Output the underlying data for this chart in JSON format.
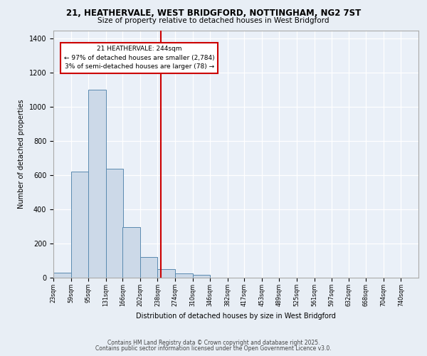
{
  "title_line1": "21, HEATHERVALE, WEST BRIDGFORD, NOTTINGHAM, NG2 7ST",
  "title_line2": "Size of property relative to detached houses in West Bridgford",
  "xlabel": "Distribution of detached houses by size in West Bridgford",
  "ylabel": "Number of detached properties",
  "bin_labels": [
    "23sqm",
    "59sqm",
    "95sqm",
    "131sqm",
    "166sqm",
    "202sqm",
    "238sqm",
    "274sqm",
    "310sqm",
    "346sqm",
    "382sqm",
    "417sqm",
    "453sqm",
    "489sqm",
    "525sqm",
    "561sqm",
    "597sqm",
    "632sqm",
    "668sqm",
    "704sqm",
    "740sqm"
  ],
  "bin_edges": [
    23,
    59,
    95,
    131,
    166,
    202,
    238,
    274,
    310,
    346,
    382,
    417,
    453,
    489,
    525,
    561,
    597,
    632,
    668,
    704,
    740
  ],
  "bar_heights": [
    30,
    620,
    1100,
    640,
    295,
    120,
    50,
    25,
    15,
    0,
    0,
    0,
    0,
    0,
    0,
    0,
    0,
    0,
    0,
    0
  ],
  "bar_color_fill": "#ccd9e8",
  "bar_color_edge": "#5a8ab0",
  "property_value": 244,
  "vline_color": "#cc0000",
  "annotation_line1": "21 HEATHERVALE: 244sqm",
  "annotation_line2": "← 97% of detached houses are smaller (2,784)",
  "annotation_line3": "3% of semi-detached houses are larger (78) →",
  "annotation_box_facecolor": "#ffffff",
  "annotation_box_edgecolor": "#cc0000",
  "ylim": [
    0,
    1450
  ],
  "yticks": [
    0,
    200,
    400,
    600,
    800,
    1000,
    1200,
    1400
  ],
  "bg_color": "#e8eef5",
  "plot_bg_color": "#eaf0f8",
  "grid_color": "#ffffff",
  "footer_line1": "Contains HM Land Registry data © Crown copyright and database right 2025.",
  "footer_line2": "Contains public sector information licensed under the Open Government Licence v3.0."
}
